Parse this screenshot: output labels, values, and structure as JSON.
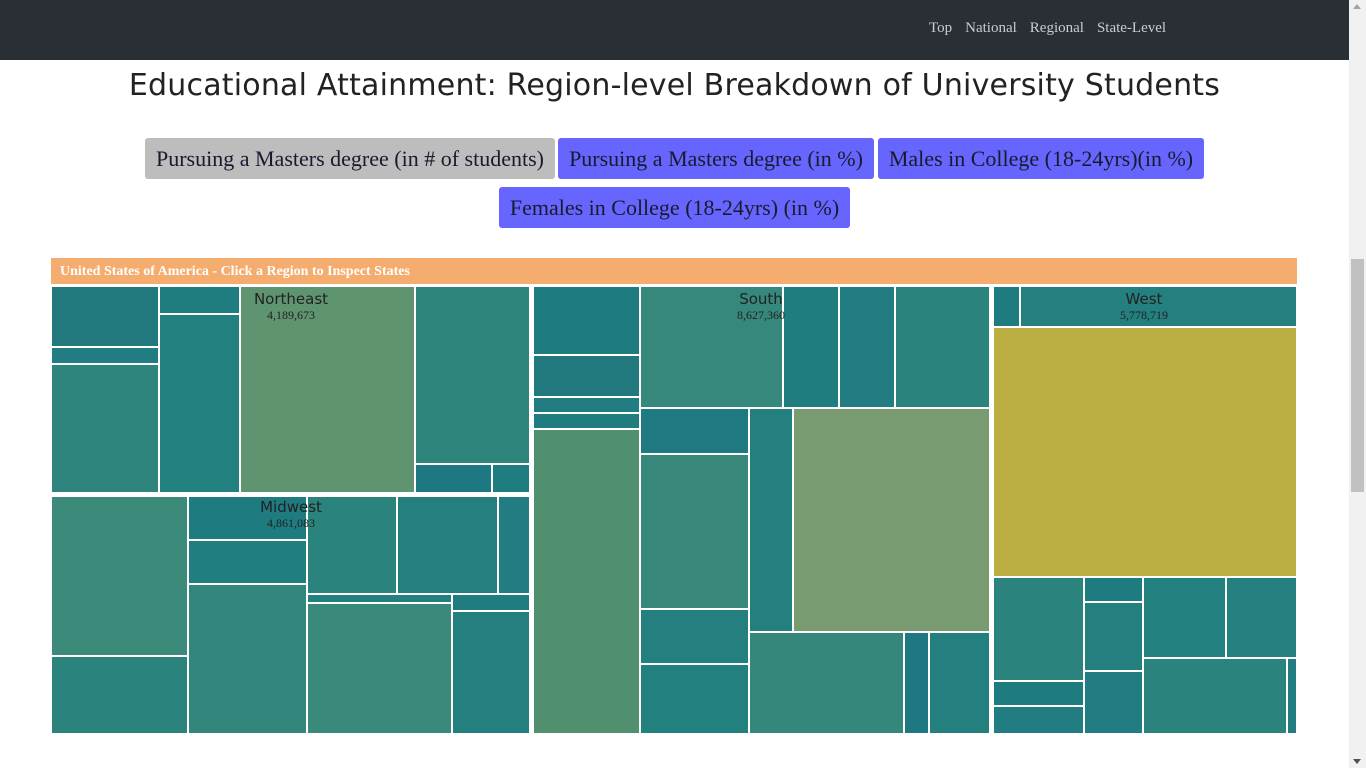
{
  "nav": {
    "links": [
      "Top",
      "National",
      "Regional",
      "State-Level"
    ]
  },
  "page_title": "Educational Attainment: Region-level Breakdown of University Students",
  "buttons": [
    {
      "label": "Pursuing a Masters degree (in # of students)",
      "active": true
    },
    {
      "label": "Pursuing a Masters degree (in %)",
      "active": false
    },
    {
      "label": "Males in College (18-24yrs)(in %)",
      "active": false
    },
    {
      "label": "Females in College (18-24yrs) (in %)",
      "active": false
    }
  ],
  "colors": {
    "button_active": "#bdbdbd",
    "button": "#6666ff",
    "header": "#f5ad6f",
    "navbar": "#2a2f36"
  },
  "chart_data": {
    "type": "treemap",
    "title": "United States of America - Click a Region to Inspect States",
    "regions": [
      {
        "name": "Northeast",
        "value": 4189673,
        "label": "4,189,673"
      },
      {
        "name": "Midwest",
        "value": 4861083,
        "label": "4,861,083"
      },
      {
        "name": "South",
        "value": 8627360,
        "label": "8,627,360"
      },
      {
        "name": "West",
        "value": 5778719,
        "label": "5,778,719"
      }
    ]
  }
}
